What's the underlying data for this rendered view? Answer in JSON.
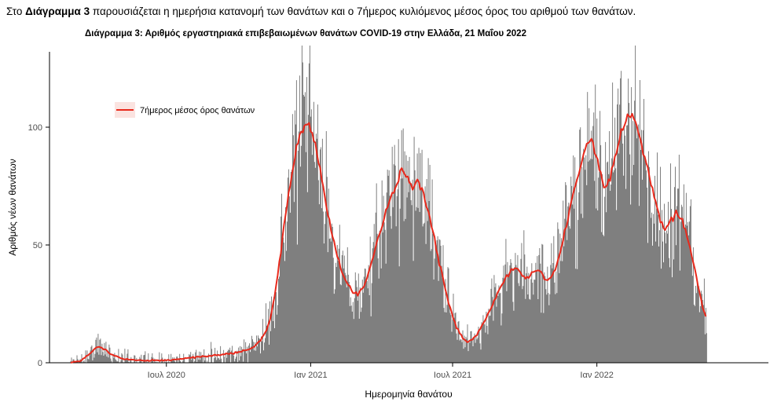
{
  "intro": {
    "before": "Στο ",
    "bold": "Διάγραμμα 3",
    "after": " παρουσιάζεται η ημερήσια κατανομή των θανάτων και ο 7ήμερος κυλιόμενος μέσος όρος του αριθμού των θανάτων."
  },
  "chart_data": {
    "type": "bar",
    "title": "Διάγραμμα 3: Αριθμός εργαστηριακά επιβεβαιωμένων θανάτων COVID-19 στην Ελλάδα, 21 Μαΐου 2022",
    "xlabel": "Ημερομηνία θανάτου",
    "ylabel": "Αριθμός νέων θανάτων",
    "y_ticks": [
      0,
      50,
      100
    ],
    "ylim": [
      0,
      132
    ],
    "x_tick_labels": [
      "Ιουλ 2020",
      "Ιαν 2021",
      "Ιουλ 2021",
      "Ιαν 2022"
    ],
    "x_tick_days": [
      122,
      306,
      487,
      671
    ],
    "x_domain_days": [
      0,
      811
    ],
    "grid": false,
    "background": "#ffffff",
    "bar_color": "#7f7f7f",
    "legend": {
      "label": "7ήμερος μέσος όρος θανάτων",
      "line_color": "#e8291c",
      "key_fill": "#fbe3e0",
      "position": "top-left-inset"
    },
    "series": [
      {
        "name": "7ήμερος μέσος όρος θανάτων",
        "points_day_value": [
          [
            0,
            0
          ],
          [
            7,
            0.5
          ],
          [
            14,
            1
          ],
          [
            21,
            3
          ],
          [
            28,
            5
          ],
          [
            35,
            7
          ],
          [
            42,
            6
          ],
          [
            49,
            4
          ],
          [
            56,
            3
          ],
          [
            63,
            2
          ],
          [
            70,
            1.5
          ],
          [
            84,
            1
          ],
          [
            98,
            1
          ],
          [
            112,
            1
          ],
          [
            122,
            1
          ],
          [
            136,
            1.5
          ],
          [
            150,
            2
          ],
          [
            164,
            2.5
          ],
          [
            178,
            3
          ],
          [
            192,
            3.5
          ],
          [
            206,
            4
          ],
          [
            220,
            5
          ],
          [
            230,
            6
          ],
          [
            240,
            9
          ],
          [
            247,
            12
          ],
          [
            254,
            18
          ],
          [
            261,
            30
          ],
          [
            268,
            48
          ],
          [
            275,
            65
          ],
          [
            282,
            80
          ],
          [
            289,
            93
          ],
          [
            296,
            100
          ],
          [
            303,
            102
          ],
          [
            310,
            96
          ],
          [
            317,
            84
          ],
          [
            324,
            70
          ],
          [
            331,
            58
          ],
          [
            338,
            48
          ],
          [
            345,
            40
          ],
          [
            352,
            34
          ],
          [
            359,
            30
          ],
          [
            366,
            29
          ],
          [
            373,
            32
          ],
          [
            380,
            38
          ],
          [
            387,
            46
          ],
          [
            394,
            55
          ],
          [
            401,
            63
          ],
          [
            408,
            70
          ],
          [
            415,
            76
          ],
          [
            422,
            81
          ],
          [
            429,
            78
          ],
          [
            436,
            74
          ],
          [
            443,
            77
          ],
          [
            450,
            72
          ],
          [
            457,
            63
          ],
          [
            464,
            52
          ],
          [
            471,
            41
          ],
          [
            478,
            31
          ],
          [
            485,
            22
          ],
          [
            492,
            15
          ],
          [
            499,
            11
          ],
          [
            506,
            9
          ],
          [
            513,
            10
          ],
          [
            520,
            13
          ],
          [
            527,
            17
          ],
          [
            534,
            22
          ],
          [
            541,
            27
          ],
          [
            548,
            32
          ],
          [
            555,
            36
          ],
          [
            562,
            39
          ],
          [
            569,
            40
          ],
          [
            576,
            37
          ],
          [
            583,
            36
          ],
          [
            590,
            39
          ],
          [
            597,
            40
          ],
          [
            604,
            36
          ],
          [
            611,
            35
          ],
          [
            618,
            40
          ],
          [
            625,
            48
          ],
          [
            632,
            58
          ],
          [
            639,
            68
          ],
          [
            646,
            78
          ],
          [
            653,
            88
          ],
          [
            660,
            94
          ],
          [
            667,
            92
          ],
          [
            674,
            82
          ],
          [
            681,
            74
          ],
          [
            688,
            78
          ],
          [
            695,
            88
          ],
          [
            702,
            98
          ],
          [
            709,
            104
          ],
          [
            716,
            105
          ],
          [
            723,
            99
          ],
          [
            730,
            90
          ],
          [
            737,
            80
          ],
          [
            744,
            70
          ],
          [
            751,
            62
          ],
          [
            758,
            57
          ],
          [
            765,
            60
          ],
          [
            772,
            64
          ],
          [
            779,
            62
          ],
          [
            786,
            54
          ],
          [
            793,
            44
          ],
          [
            800,
            33
          ],
          [
            806,
            24
          ],
          [
            811,
            18
          ]
        ]
      }
    ],
    "bars": {
      "generated_from": "7ήμερος μέσος όρος θανάτων",
      "noise_rel": 0.16,
      "noise_abs": 2.2,
      "seed": 11
    }
  }
}
